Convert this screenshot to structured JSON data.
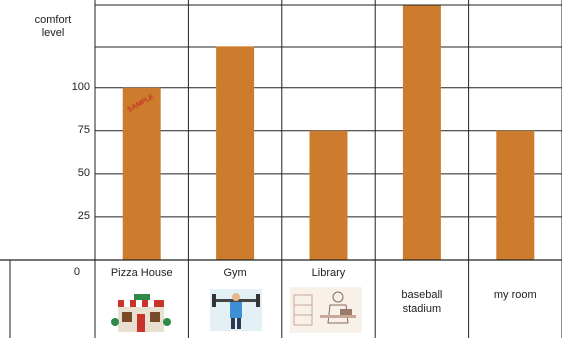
{
  "chart_data": {
    "type": "bar",
    "ylabel": "comfort\nlevel",
    "yticks": [
      0,
      25,
      50,
      75,
      100
    ],
    "ylim": [
      0,
      148
    ],
    "categories": [
      "Pizza House",
      "Gym",
      "Library",
      "baseball\nstadium",
      "my room"
    ],
    "values": [
      100,
      124,
      75,
      148,
      75
    ],
    "bar_color": "#cd7c2e",
    "stamp_text": "SAMPLE",
    "icons": [
      "pizza-house-icon",
      "gym-icon",
      "library-icon",
      "",
      ""
    ]
  }
}
